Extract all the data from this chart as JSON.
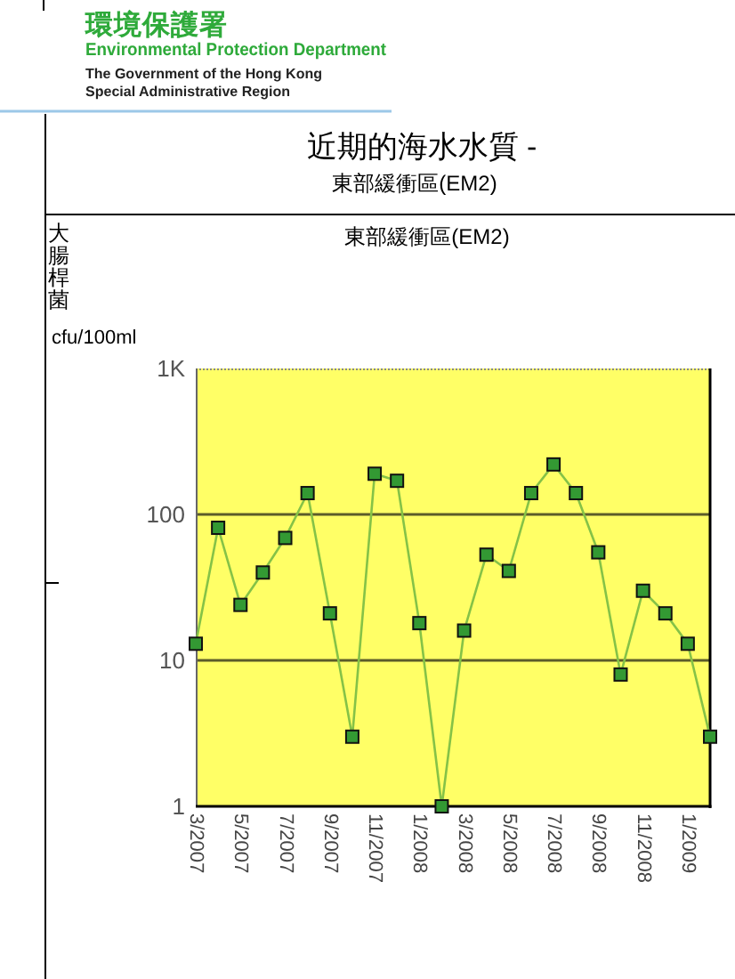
{
  "chart_data": {
    "type": "line",
    "title": "近期的海水水質 -",
    "subtitle": "東部緩衝區(EM2)",
    "ylabel": "大腸桿菌",
    "annotations": [
      "環境保護署",
      "Environmental Protection Department",
      "The Government of the Hong Kong",
      "Special Administrative Region",
      "東部緩衝區(EM2)",
      "cfu/100ml"
    ],
    "categories": [
      "3/2007",
      null,
      "5/2007",
      null,
      "7/2007",
      null,
      "9/2007",
      null,
      "11/2007",
      null,
      "1/2008",
      null,
      "3/2008",
      null,
      "5/2008",
      null,
      "7/2008",
      null,
      "9/2008",
      null,
      "11/2008",
      null,
      "1/2009",
      null
    ],
    "series": [
      {
        "color": "#339933",
        "values": [
          13,
          81,
          24,
          40,
          69,
          140,
          21,
          3,
          190,
          170,
          18,
          1,
          16,
          53,
          41,
          140,
          220,
          140,
          55,
          8,
          30,
          21,
          13,
          3
        ]
      }
    ],
    "ylim": [
      1,
      1000
    ],
    "yticks": [
      1,
      10,
      100,
      {
        "value": 1000,
        "label": "1K"
      }
    ],
    "log": true,
    "grid": "y",
    "marker": "square"
  }
}
